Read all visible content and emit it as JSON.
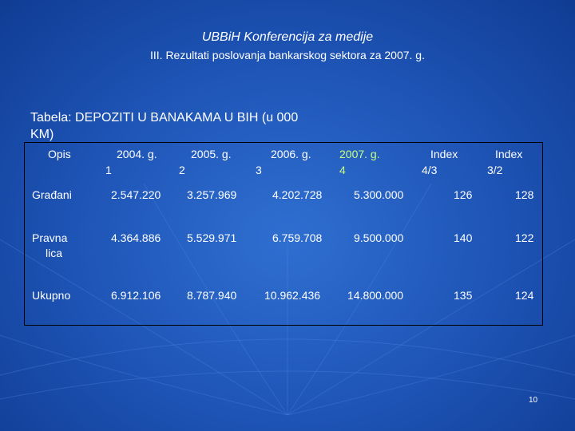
{
  "slide": {
    "title": "UBBiH Konferencija za medije",
    "subtitle": "III. Rezultati poslovanja bankarskog  sektora za 2007. g.",
    "table_caption": "Tabela: DEPOZITI U BANAKAMA U BIH (u 000 KM)",
    "page_number": "10"
  },
  "table": {
    "headers": [
      {
        "label": "Opis",
        "index": ""
      },
      {
        "label": "2004. g.",
        "index": "1"
      },
      {
        "label": "2005. g.",
        "index": "2"
      },
      {
        "label": "2006. g.",
        "index": "3"
      },
      {
        "label": "2007. g.",
        "index": "4"
      },
      {
        "label": "Index",
        "index": "4/3"
      },
      {
        "label": "Index",
        "index": "3/2"
      }
    ],
    "rows": [
      {
        "label": "Građani",
        "label_line2": "",
        "values": [
          "2.547.220",
          "3.257.969",
          "4.202.728",
          "5.300.000",
          "126",
          "128"
        ]
      },
      {
        "label": "Pravna",
        "label_line2": "lica",
        "values": [
          "4.364.886",
          "5.529.971",
          "6.759.708",
          "9.500.000",
          "140",
          "122"
        ]
      },
      {
        "label": "Ukupno",
        "label_line2": "",
        "values": [
          "6.912.106",
          "8.787.940",
          "10.962.436",
          "14.800.000",
          "135",
          "124"
        ]
      }
    ]
  },
  "colors": {
    "accent_green": "#c8ff80",
    "text": "#ffffff",
    "background": "#1f56b8"
  }
}
